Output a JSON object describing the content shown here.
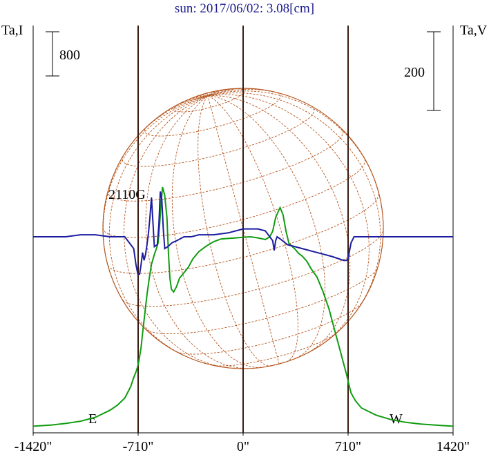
{
  "chart_data": {
    "type": "line",
    "title": "sun: 2017/06/02: 3.08[cm]",
    "left_axis_label": "Ta,I",
    "right_axis_label": "Ta,V",
    "scale_bar_left": "800",
    "scale_bar_right": "200",
    "annotation": "2110G",
    "limb_labels": {
      "east": "E",
      "west": "W"
    },
    "x_ticks": [
      {
        "value": -1420,
        "label": "-1420\""
      },
      {
        "value": -710,
        "label": "-710\""
      },
      {
        "value": 0,
        "label": "0\""
      },
      {
        "value": 710,
        "label": "710\""
      },
      {
        "value": 1420,
        "label": "1420\""
      }
    ],
    "xlim": [
      -1420,
      1420
    ],
    "vertical_lines": [
      -710,
      0,
      710
    ],
    "colors": {
      "stokes_i": "#109c10",
      "stokes_v": "#1c1ca0",
      "grid": "#b5541c",
      "title": "#1a1a8c"
    },
    "series": [
      {
        "key": "stokes_i",
        "x": [
          -1420,
          -1300,
          -1200,
          -1100,
          -1000,
          -900,
          -850,
          -800,
          -760,
          -740,
          -725,
          -715,
          -705,
          -690,
          -680,
          -665,
          -650,
          -635,
          -620,
          -600,
          -585,
          -575,
          -565,
          -555,
          -545,
          -530,
          -515,
          -505,
          -495,
          -485,
          -470,
          -450,
          -430,
          -400,
          -370,
          -340,
          -300,
          -250,
          -200,
          -150,
          -100,
          -50,
          0,
          50,
          100,
          150,
          180,
          200,
          220,
          250,
          270,
          290,
          310,
          330,
          350,
          375,
          400,
          430,
          460,
          500,
          540,
          580,
          620,
          650,
          680,
          700,
          715,
          730,
          760,
          800,
          900,
          1000,
          1100,
          1200,
          1300,
          1420
        ],
        "y": [
          20,
          40,
          70,
          110,
          180,
          310,
          400,
          530,
          740,
          900,
          1000,
          1080,
          1200,
          1450,
          1700,
          2050,
          2400,
          2700,
          2950,
          3130,
          3250,
          3340,
          3650,
          4050,
          4350,
          4200,
          3800,
          3150,
          2700,
          2500,
          2450,
          2550,
          2700,
          2800,
          2900,
          3050,
          3180,
          3280,
          3360,
          3410,
          3420,
          3430,
          3440,
          3450,
          3430,
          3400,
          3450,
          3550,
          3800,
          3980,
          3850,
          3550,
          3330,
          3280,
          3230,
          3150,
          3100,
          3010,
          2870,
          2720,
          2460,
          2150,
          1750,
          1450,
          1150,
          950,
          780,
          620,
          480,
          350,
          220,
          140,
          90,
          60,
          40,
          20
        ]
      },
      {
        "key": "stokes_v",
        "x": [
          -1420,
          -1300,
          -1200,
          -1100,
          -1000,
          -900,
          -800,
          -740,
          -725,
          -712,
          -700,
          -690,
          -680,
          -670,
          -660,
          -650,
          -640,
          -630,
          -620,
          -600,
          -580,
          -570,
          -560,
          -550,
          -540,
          -530,
          -510,
          -480,
          -450,
          -400,
          -350,
          -300,
          -200,
          -100,
          0,
          100,
          150,
          200,
          210,
          220,
          230,
          250,
          300,
          400,
          500,
          600,
          680,
          700,
          710,
          730,
          750,
          800,
          1000,
          1200,
          1420
        ],
        "y": [
          0,
          0,
          0,
          5,
          5,
          0,
          0,
          -30,
          -70,
          -95,
          -95,
          -70,
          -40,
          -60,
          -45,
          -20,
          10,
          50,
          100,
          -25,
          -20,
          30,
          115,
          95,
          20,
          -30,
          -25,
          -15,
          -10,
          0,
          0,
          5,
          5,
          10,
          20,
          20,
          15,
          -10,
          -35,
          -10,
          0,
          -5,
          -20,
          -30,
          -40,
          -50,
          -60,
          -60,
          -55,
          -15,
          0,
          0,
          0,
          0,
          0
        ]
      }
    ]
  }
}
